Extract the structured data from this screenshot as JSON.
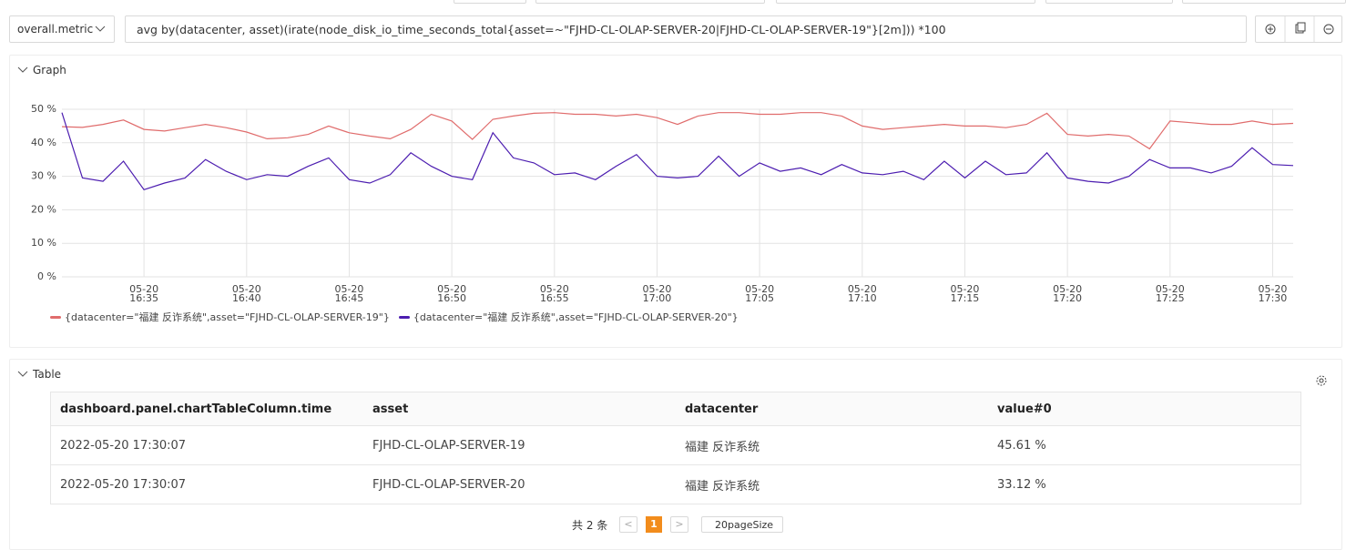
{
  "toolbar": {
    "metric_select": "overall.metric",
    "query": "avg by(datacenter, asset)(irate(node_disk_io_time_seconds_total{asset=~\"FJHD-CL-OLAP-SERVER-20|FJHD-CL-OLAP-SERVER-19\"}[2m]))  *100"
  },
  "graph_panel": {
    "title": "Graph"
  },
  "chart_data": {
    "type": "line",
    "x": [
      "05-20 16:31",
      "05-20 16:32",
      "05-20 16:33",
      "05-20 16:34",
      "05-20 16:35",
      "05-20 16:36",
      "05-20 16:37",
      "05-20 16:38",
      "05-20 16:39",
      "05-20 16:40",
      "05-20 16:41",
      "05-20 16:42",
      "05-20 16:43",
      "05-20 16:44",
      "05-20 16:45",
      "05-20 16:46",
      "05-20 16:47",
      "05-20 16:48",
      "05-20 16:49",
      "05-20 16:50",
      "05-20 16:51",
      "05-20 16:52",
      "05-20 16:53",
      "05-20 16:54",
      "05-20 16:55",
      "05-20 16:56",
      "05-20 16:57",
      "05-20 16:58",
      "05-20 16:59",
      "05-20 17:00",
      "05-20 17:01",
      "05-20 17:02",
      "05-20 17:03",
      "05-20 17:04",
      "05-20 17:05",
      "05-20 17:06",
      "05-20 17:07",
      "05-20 17:08",
      "05-20 17:09",
      "05-20 17:10",
      "05-20 17:11",
      "05-20 17:12",
      "05-20 17:13",
      "05-20 17:14",
      "05-20 17:15",
      "05-20 17:16",
      "05-20 17:17",
      "05-20 17:18",
      "05-20 17:19",
      "05-20 17:20",
      "05-20 17:21",
      "05-20 17:22",
      "05-20 17:23",
      "05-20 17:24",
      "05-20 17:25",
      "05-20 17:26",
      "05-20 17:27",
      "05-20 17:28",
      "05-20 17:29",
      "05-20 17:30",
      "05-20 17:31"
    ],
    "series": [
      {
        "name": "{datacenter=\"福建 反诈系统\",asset=\"FJHD-CL-OLAP-SERVER-19\"}",
        "color": "#e06c6c",
        "values": [
          44.8,
          44.6,
          45.5,
          46.8,
          44,
          43.5,
          44.5,
          45.5,
          44.5,
          43.2,
          41.2,
          41.5,
          42.5,
          45,
          43,
          42,
          41.2,
          44,
          48.5,
          46.5,
          41,
          47,
          48,
          48.8,
          49,
          48.5,
          48.5,
          48,
          48.5,
          47.5,
          45.5,
          48,
          49,
          49,
          48.5,
          48.5,
          49,
          49,
          48,
          45,
          44,
          44.5,
          45,
          45.5,
          45,
          45,
          44.5,
          45.5,
          48.8,
          42.5,
          42,
          42.5,
          42,
          38.2,
          46.5,
          46,
          45.5,
          45.5,
          46.5,
          45.5,
          45.8
        ]
      },
      {
        "name": "{datacenter=\"福建 反诈系统\",asset=\"FJHD-CL-OLAP-SERVER-20\"}",
        "color": "#4c1db0",
        "values": [
          49,
          29.5,
          28.5,
          34.5,
          26,
          28,
          29.5,
          35,
          31.5,
          29,
          30.5,
          30,
          33,
          35.5,
          29,
          28,
          30.5,
          37,
          33,
          30,
          29,
          43,
          35.5,
          34,
          30.5,
          31,
          29,
          33,
          36.5,
          30,
          29.5,
          30,
          36,
          30,
          34,
          31.5,
          32.5,
          30.5,
          33.5,
          31,
          30.5,
          31.5,
          29,
          34.5,
          29.5,
          34.5,
          30.5,
          31,
          37,
          29.5,
          28.5,
          28,
          30,
          35,
          32.5,
          32.5,
          31,
          33,
          38.5,
          33.5,
          33.2
        ]
      }
    ],
    "xlim": [
      "05-20 16:31",
      "05-20 17:31"
    ],
    "xticks": [
      "05-20 16:35",
      "05-20 16:40",
      "05-20 16:45",
      "05-20 16:50",
      "05-20 16:55",
      "05-20 17:00",
      "05-20 17:05",
      "05-20 17:10",
      "05-20 17:15",
      "05-20 17:20",
      "05-20 17:25",
      "05-20 17:30"
    ],
    "ylim": [
      0,
      50
    ],
    "yticks": [
      {
        "value": 0,
        "label": "0 %"
      },
      {
        "value": 10,
        "label": "10 %"
      },
      {
        "value": 20,
        "label": "20 %"
      },
      {
        "value": 30,
        "label": "30 %"
      },
      {
        "value": 40,
        "label": "40 %"
      },
      {
        "value": 50,
        "label": "50 %"
      }
    ],
    "grid": true
  },
  "table_panel": {
    "title": "Table",
    "columns": [
      "dashboard.panel.chartTableColumn.time",
      "asset",
      "datacenter",
      "value#0"
    ],
    "rows": [
      [
        "2022-05-20 17:30:07",
        "FJHD-CL-OLAP-SERVER-19",
        "福建 反诈系统",
        "45.61 %"
      ],
      [
        "2022-05-20 17:30:07",
        "FJHD-CL-OLAP-SERVER-20",
        "福建 反诈系统",
        "33.12 %"
      ]
    ]
  },
  "pagination": {
    "total": "共 2 条",
    "current_page": "1",
    "page_size": "20pageSize"
  }
}
